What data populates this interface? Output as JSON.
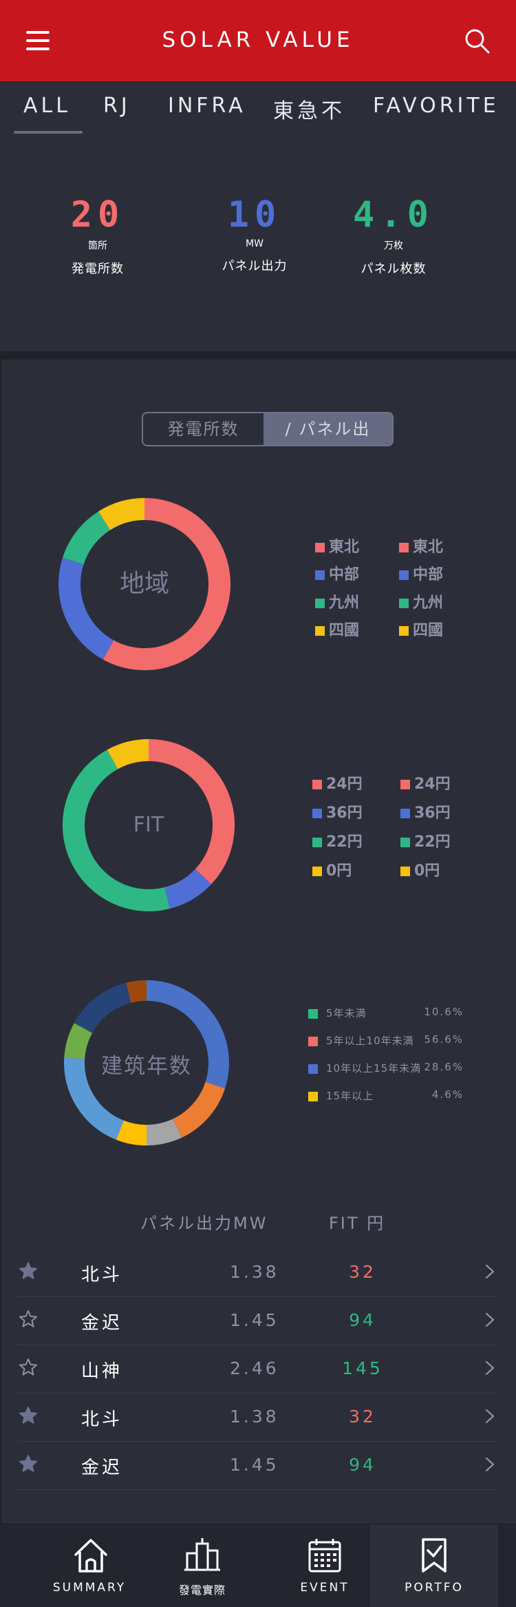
{
  "header": {
    "title": "SOLAR VALUE",
    "menu_icon": "hamburger-menu-icon",
    "search_icon": "search-icon"
  },
  "tabs": [
    {
      "label": "ALL",
      "active": true
    },
    {
      "label": "RJ"
    },
    {
      "label": "INFRA"
    },
    {
      "label": "東急不"
    },
    {
      "label": "FAVORITE"
    }
  ],
  "stats": [
    {
      "value": "20",
      "unit": "箇所",
      "label": "発電所数",
      "color": "#f36c6c"
    },
    {
      "value": "10",
      "unit": "MW",
      "label": "パネル出力",
      "color": "#4f6fd6"
    },
    {
      "value": "4.0",
      "unit": "万枚",
      "label": "パネル枚数",
      "color": "#2eb886"
    }
  ],
  "toggle": {
    "option1": "発電所数",
    "option2": "/ パネル出",
    "selected": "option2"
  },
  "charts": [
    {
      "center_label": "地域",
      "segments": [
        {
          "color": "#f36c6c",
          "value": 58
        },
        {
          "color": "#4f6fd6",
          "value": 22
        },
        {
          "color": "#2eb886",
          "value": 11
        },
        {
          "color": "#f7c10f",
          "value": 9
        }
      ],
      "legend_left": [
        {
          "label": "東北",
          "color": "#f36c6c"
        },
        {
          "label": "中部",
          "color": "#4f6fd6"
        },
        {
          "label": "九州",
          "color": "#2eb886"
        },
        {
          "label": "四國",
          "color": "#f7c10f"
        }
      ],
      "legend_right": [
        {
          "label": "東北",
          "color": "#f36c6c"
        },
        {
          "label": "中部",
          "color": "#4f6fd6"
        },
        {
          "label": "九州",
          "color": "#2eb886"
        },
        {
          "label": "四國",
          "color": "#f7c10f"
        }
      ]
    },
    {
      "center_label": "FIT",
      "segments": [
        {
          "color": "#f36c6c",
          "value": 37
        },
        {
          "color": "#4f6fd6",
          "value": 9
        },
        {
          "color": "#2eb886",
          "value": 46
        },
        {
          "color": "#f7c10f",
          "value": 8
        }
      ],
      "legend_left": [
        {
          "label": "24円",
          "color": "#f36c6c"
        },
        {
          "label": "36円",
          "color": "#4f6fd6"
        },
        {
          "label": "22円",
          "color": "#2eb886"
        },
        {
          "label": "0円",
          "color": "#f7c10f"
        }
      ],
      "legend_right": [
        {
          "label": "24円",
          "color": "#f36c6c"
        },
        {
          "label": "36円",
          "color": "#4f6fd6"
        },
        {
          "label": "22円",
          "color": "#2eb886"
        },
        {
          "label": "0円",
          "color": "#f7c10f"
        }
      ]
    },
    {
      "center_label": "建筑年数",
      "segments": [
        {
          "color": "#4a72c9",
          "value": 30
        },
        {
          "color": "#ec7d32",
          "value": 13
        },
        {
          "color": "#a5a5a5",
          "value": 7
        },
        {
          "color": "#ffc000",
          "value": 6
        },
        {
          "color": "#5b9bd5",
          "value": 20
        },
        {
          "color": "#70ad47",
          "value": 7
        },
        {
          "color": "#264478",
          "value": 13
        },
        {
          "color": "#9e480e",
          "value": 4
        }
      ],
      "legend": [
        {
          "label": "5年未満",
          "pct": "10.6%",
          "color": "#2eb886"
        },
        {
          "label": "5年以上10年未満",
          "pct": "56.6%",
          "color": "#f36c6c"
        },
        {
          "label": "10年以上15年未満",
          "pct": "28.6%",
          "color": "#4f6fd6"
        },
        {
          "label": "15年以上",
          "pct": "4.6%",
          "color": "#f7c10f"
        }
      ]
    }
  ],
  "table": {
    "col_mw": "パネル出力MW",
    "col_fit": "FIT 円",
    "rows": [
      {
        "name": "北斗",
        "mw": "1.38",
        "fit": "32",
        "fit_color": "#f36c6c",
        "favorite": true
      },
      {
        "name": "金迟",
        "mw": "1.45",
        "fit": "94",
        "fit_color": "#2eb886",
        "favorite": false
      },
      {
        "name": "山神",
        "mw": "2.46",
        "fit": "145",
        "fit_color": "#2eb886",
        "favorite": false
      },
      {
        "name": "北斗",
        "mw": "1.38",
        "fit": "32",
        "fit_color": "#f36c6c",
        "favorite": true
      },
      {
        "name": "金迟",
        "mw": "1.45",
        "fit": "94",
        "fit_color": "#2eb886",
        "favorite": true
      }
    ]
  },
  "nav": [
    {
      "label": "SUMMARY",
      "icon": "home-icon"
    },
    {
      "label": "發電實際",
      "icon": "buildings-icon"
    },
    {
      "label": "EVENT",
      "icon": "calendar-icon"
    },
    {
      "label": "PORTFO",
      "icon": "bookmark-icon",
      "active": true
    }
  ]
}
